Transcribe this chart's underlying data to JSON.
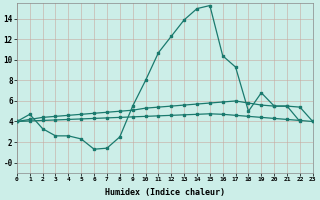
{
  "xlabel": "Humidex (Indice chaleur)",
  "background_color": "#cceee8",
  "grid_color": "#b8d8d0",
  "line_color": "#1a7a6e",
  "line1_x": [
    0,
    1,
    2,
    3,
    4,
    5,
    6,
    7,
    8,
    9,
    10,
    11,
    12,
    13,
    14,
    15,
    16,
    17,
    18,
    19,
    20,
    21,
    22
  ],
  "line1_y": [
    4.0,
    4.7,
    3.3,
    2.6,
    2.6,
    2.3,
    1.3,
    1.4,
    2.5,
    5.5,
    8.0,
    10.7,
    12.3,
    13.9,
    15.0,
    15.3,
    10.4,
    9.3,
    5.0,
    6.8,
    5.5,
    5.5,
    4.0
  ],
  "line2_x": [
    0,
    1,
    2,
    3,
    4,
    5,
    6,
    7,
    8,
    9,
    10,
    11,
    12,
    13,
    14,
    15,
    16,
    17,
    18,
    19,
    20,
    21,
    22,
    23
  ],
  "line2_y": [
    4.0,
    4.2,
    4.4,
    4.5,
    4.6,
    4.7,
    4.8,
    4.9,
    5.0,
    5.1,
    5.3,
    5.4,
    5.5,
    5.6,
    5.7,
    5.8,
    5.9,
    6.0,
    5.8,
    5.6,
    5.5,
    5.5,
    5.4,
    4.0
  ],
  "line3_x": [
    0,
    1,
    2,
    3,
    4,
    5,
    6,
    7,
    8,
    9,
    10,
    11,
    12,
    13,
    14,
    15,
    16,
    17,
    18,
    19,
    20,
    21,
    22,
    23
  ],
  "line3_y": [
    4.0,
    4.05,
    4.1,
    4.15,
    4.2,
    4.25,
    4.3,
    4.35,
    4.4,
    4.45,
    4.5,
    4.55,
    4.6,
    4.65,
    4.7,
    4.75,
    4.7,
    4.6,
    4.5,
    4.4,
    4.3,
    4.2,
    4.1,
    4.0
  ],
  "ylim": [
    -1.0,
    15.5
  ],
  "xlim": [
    0,
    23
  ],
  "yticks": [
    0,
    2,
    4,
    6,
    8,
    10,
    12,
    14
  ],
  "ytick_labels": [
    "-0",
    "2",
    "4",
    "6",
    "8",
    "10",
    "12",
    "14"
  ],
  "xticks": [
    0,
    1,
    2,
    3,
    4,
    5,
    6,
    7,
    8,
    9,
    10,
    11,
    12,
    13,
    14,
    15,
    16,
    17,
    18,
    19,
    20,
    21,
    22,
    23
  ]
}
